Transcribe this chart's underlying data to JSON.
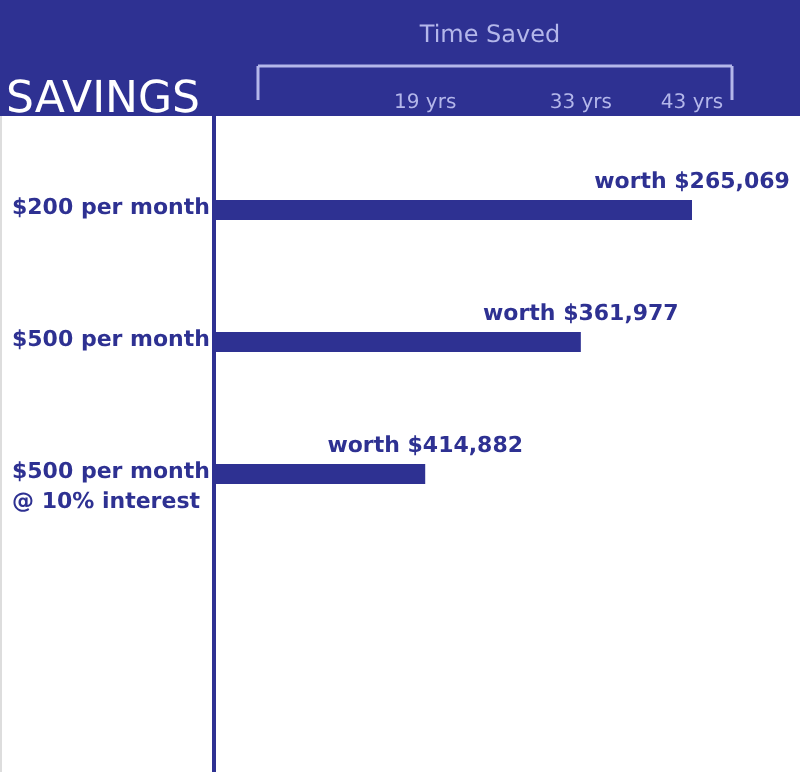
{
  "chart_data": {
    "type": "bar",
    "orientation": "horizontal",
    "title": "SAVINGS",
    "xlabel": "Time Saved",
    "categories": [
      "$200 per month",
      "$500 per month",
      "$500 per month\n@ 10% interest"
    ],
    "values": [
      43,
      33,
      19
    ],
    "xlim": [
      0,
      43
    ],
    "xticks": [
      {
        "value": 19,
        "label": "19 yrs"
      },
      {
        "value": 33,
        "label": "33 yrs"
      },
      {
        "value": 43,
        "label": "43 yrs"
      }
    ],
    "color": "#2e3192",
    "value_labels": [
      "worth $265,069",
      "worth $361,977",
      "worth $414,882"
    ]
  }
}
